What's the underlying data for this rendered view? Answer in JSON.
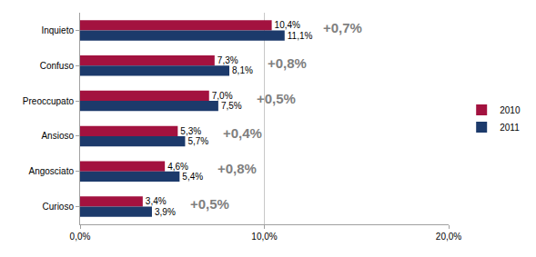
{
  "chart_data": {
    "type": "bar",
    "orientation": "horizontal",
    "categories": [
      "Inquieto",
      "Confuso",
      "Preoccupato",
      "Ansioso",
      "Angosciato",
      "Curioso"
    ],
    "series": [
      {
        "name": "2010",
        "color": "#a3123f",
        "values": [
          10.4,
          7.3,
          7.0,
          5.3,
          4.6,
          3.4
        ],
        "value_labels": [
          "10,4%",
          "7,3%",
          "7,0%",
          "5,3%",
          "4,6%",
          "3,4%"
        ]
      },
      {
        "name": "2011",
        "color": "#1c3a6b",
        "values": [
          11.1,
          8.1,
          7.5,
          5.7,
          5.4,
          3.9
        ],
        "value_labels": [
          "11,1%",
          "8,1%",
          "7,5%",
          "5,7%",
          "5,4%",
          "3,9%"
        ]
      }
    ],
    "annotations": [
      {
        "category": "Inquieto",
        "text": "+0,7%"
      },
      {
        "category": "Confuso",
        "text": "+0,8%"
      },
      {
        "category": "Preoccupato",
        "text": "+0,5%"
      },
      {
        "category": "Ansioso",
        "text": "+0,4%"
      },
      {
        "category": "Angosciato",
        "text": "+0,8%"
      },
      {
        "category": "Curioso",
        "text": "+0,5%"
      }
    ],
    "xlim": [
      0,
      20
    ],
    "xticks": [
      {
        "value": 0,
        "label": "0,0%"
      },
      {
        "value": 10,
        "label": "10,0%"
      },
      {
        "value": 20,
        "label": "20,0%"
      }
    ],
    "grid": true,
    "data_labels": true,
    "legend": "right"
  }
}
